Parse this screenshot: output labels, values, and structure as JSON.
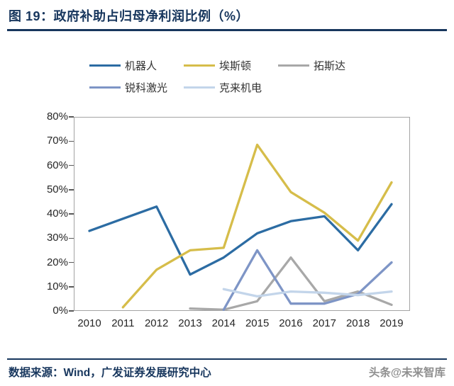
{
  "figure": {
    "title": "图 19：政府补助占归母净利润比例（%）"
  },
  "footer": {
    "source": "数据来源：Wind，广发证券发展研究中心",
    "watermark": "头条@未来智库"
  },
  "chart_data": {
    "type": "line",
    "title": "政府补助占归母净利润比例（%）",
    "x": [
      "2010",
      "2011",
      "2012",
      "2013",
      "2014",
      "2015",
      "2016",
      "2017",
      "2018",
      "2019"
    ],
    "series": [
      {
        "name": "机器人",
        "color": "#2c6ca3",
        "values": [
          33,
          38,
          43,
          15,
          22,
          32,
          37,
          39,
          25,
          44
        ]
      },
      {
        "name": "埃斯顿",
        "color": "#d6bd4a",
        "values": [
          null,
          1.5,
          17,
          25,
          26,
          68.5,
          49,
          40.5,
          29,
          53
        ]
      },
      {
        "name": "拓斯达",
        "color": "#a8a8a8",
        "values": [
          null,
          null,
          null,
          1,
          0.5,
          4,
          22,
          4,
          8,
          2.5
        ]
      },
      {
        "name": "锐科激光",
        "color": "#7e95c6",
        "values": [
          null,
          null,
          null,
          null,
          0.5,
          25,
          3,
          3,
          7,
          20
        ]
      },
      {
        "name": "克来机电",
        "color": "#c3d5ea",
        "values": [
          null,
          null,
          null,
          null,
          9,
          6,
          8,
          7.5,
          6.5,
          8
        ]
      }
    ],
    "ylim": [
      0,
      80
    ],
    "ytick_step": 10,
    "ytick_format": "percent",
    "ytick_labels": [
      "0%",
      "10%",
      "20%",
      "30%",
      "40%",
      "50%",
      "60%",
      "70%",
      "80%"
    ],
    "grid": false,
    "legend_position": "top"
  }
}
